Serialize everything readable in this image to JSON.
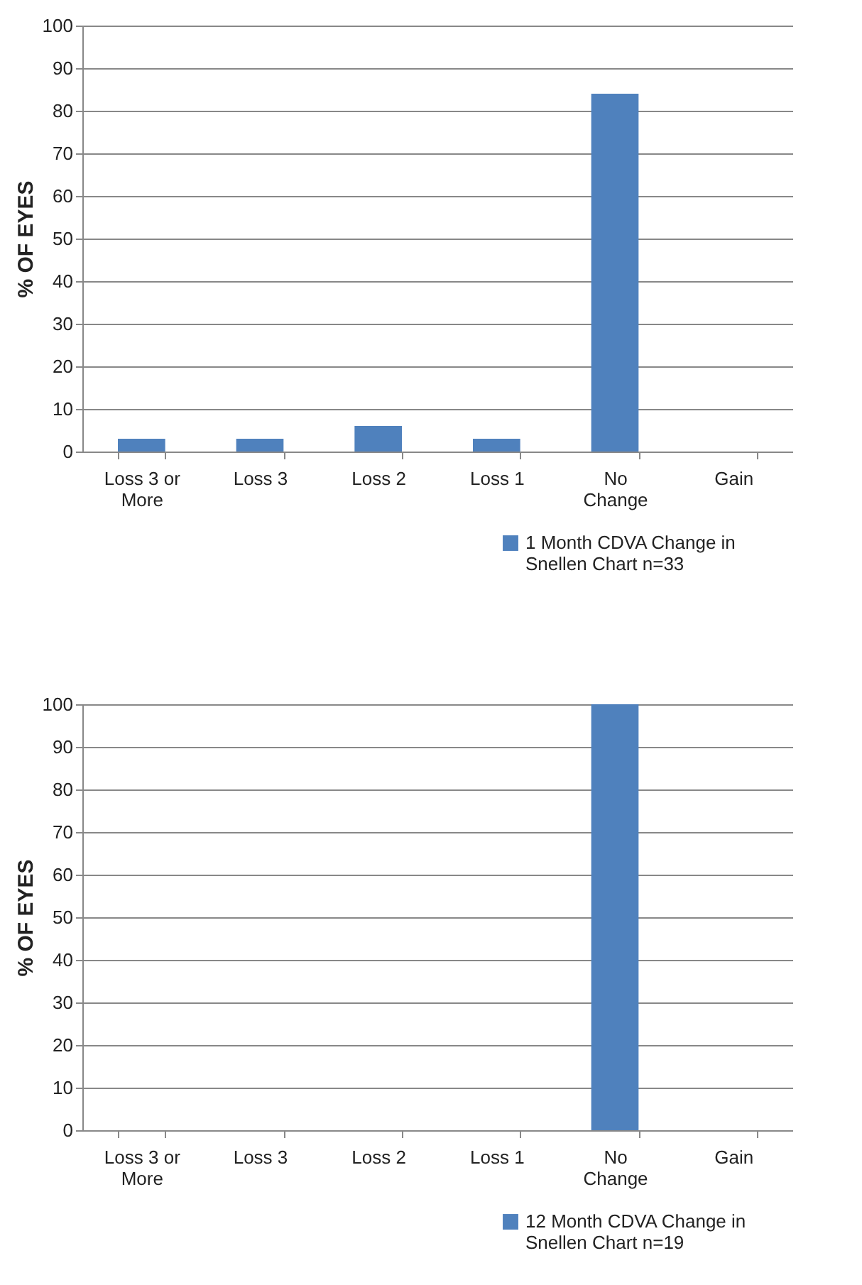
{
  "chart_data": [
    {
      "type": "bar",
      "categories": [
        "Loss 3 or More",
        "Loss 3",
        "Loss 2",
        "Loss 1",
        "No Change",
        "Gain"
      ],
      "ylabel": "% OF EYES",
      "ylim": [
        0,
        100
      ],
      "yticks": [
        0,
        10,
        20,
        30,
        40,
        50,
        60,
        70,
        80,
        90,
        100
      ],
      "grid": "y",
      "legend": "bottom right",
      "series": [
        {
          "name": "1 Month CDVA Change in Snellen Chart n=33",
          "color": "#4f81bd",
          "values": [
            3,
            3,
            6,
            3,
            84,
            0
          ]
        }
      ]
    },
    {
      "type": "bar",
      "categories": [
        "Loss 3 or More",
        "Loss 3",
        "Loss 2",
        "Loss 1",
        "No Change",
        "Gain"
      ],
      "ylabel": "% OF EYES",
      "ylim": [
        0,
        100
      ],
      "yticks": [
        0,
        10,
        20,
        30,
        40,
        50,
        60,
        70,
        80,
        90,
        100
      ],
      "grid": "y",
      "legend": "bottom right",
      "series": [
        {
          "name": "12 Month CDVA Change in Snellen Chart n=19",
          "color": "#4f81bd",
          "values": [
            0,
            0,
            0,
            0,
            100,
            0
          ]
        }
      ]
    }
  ]
}
